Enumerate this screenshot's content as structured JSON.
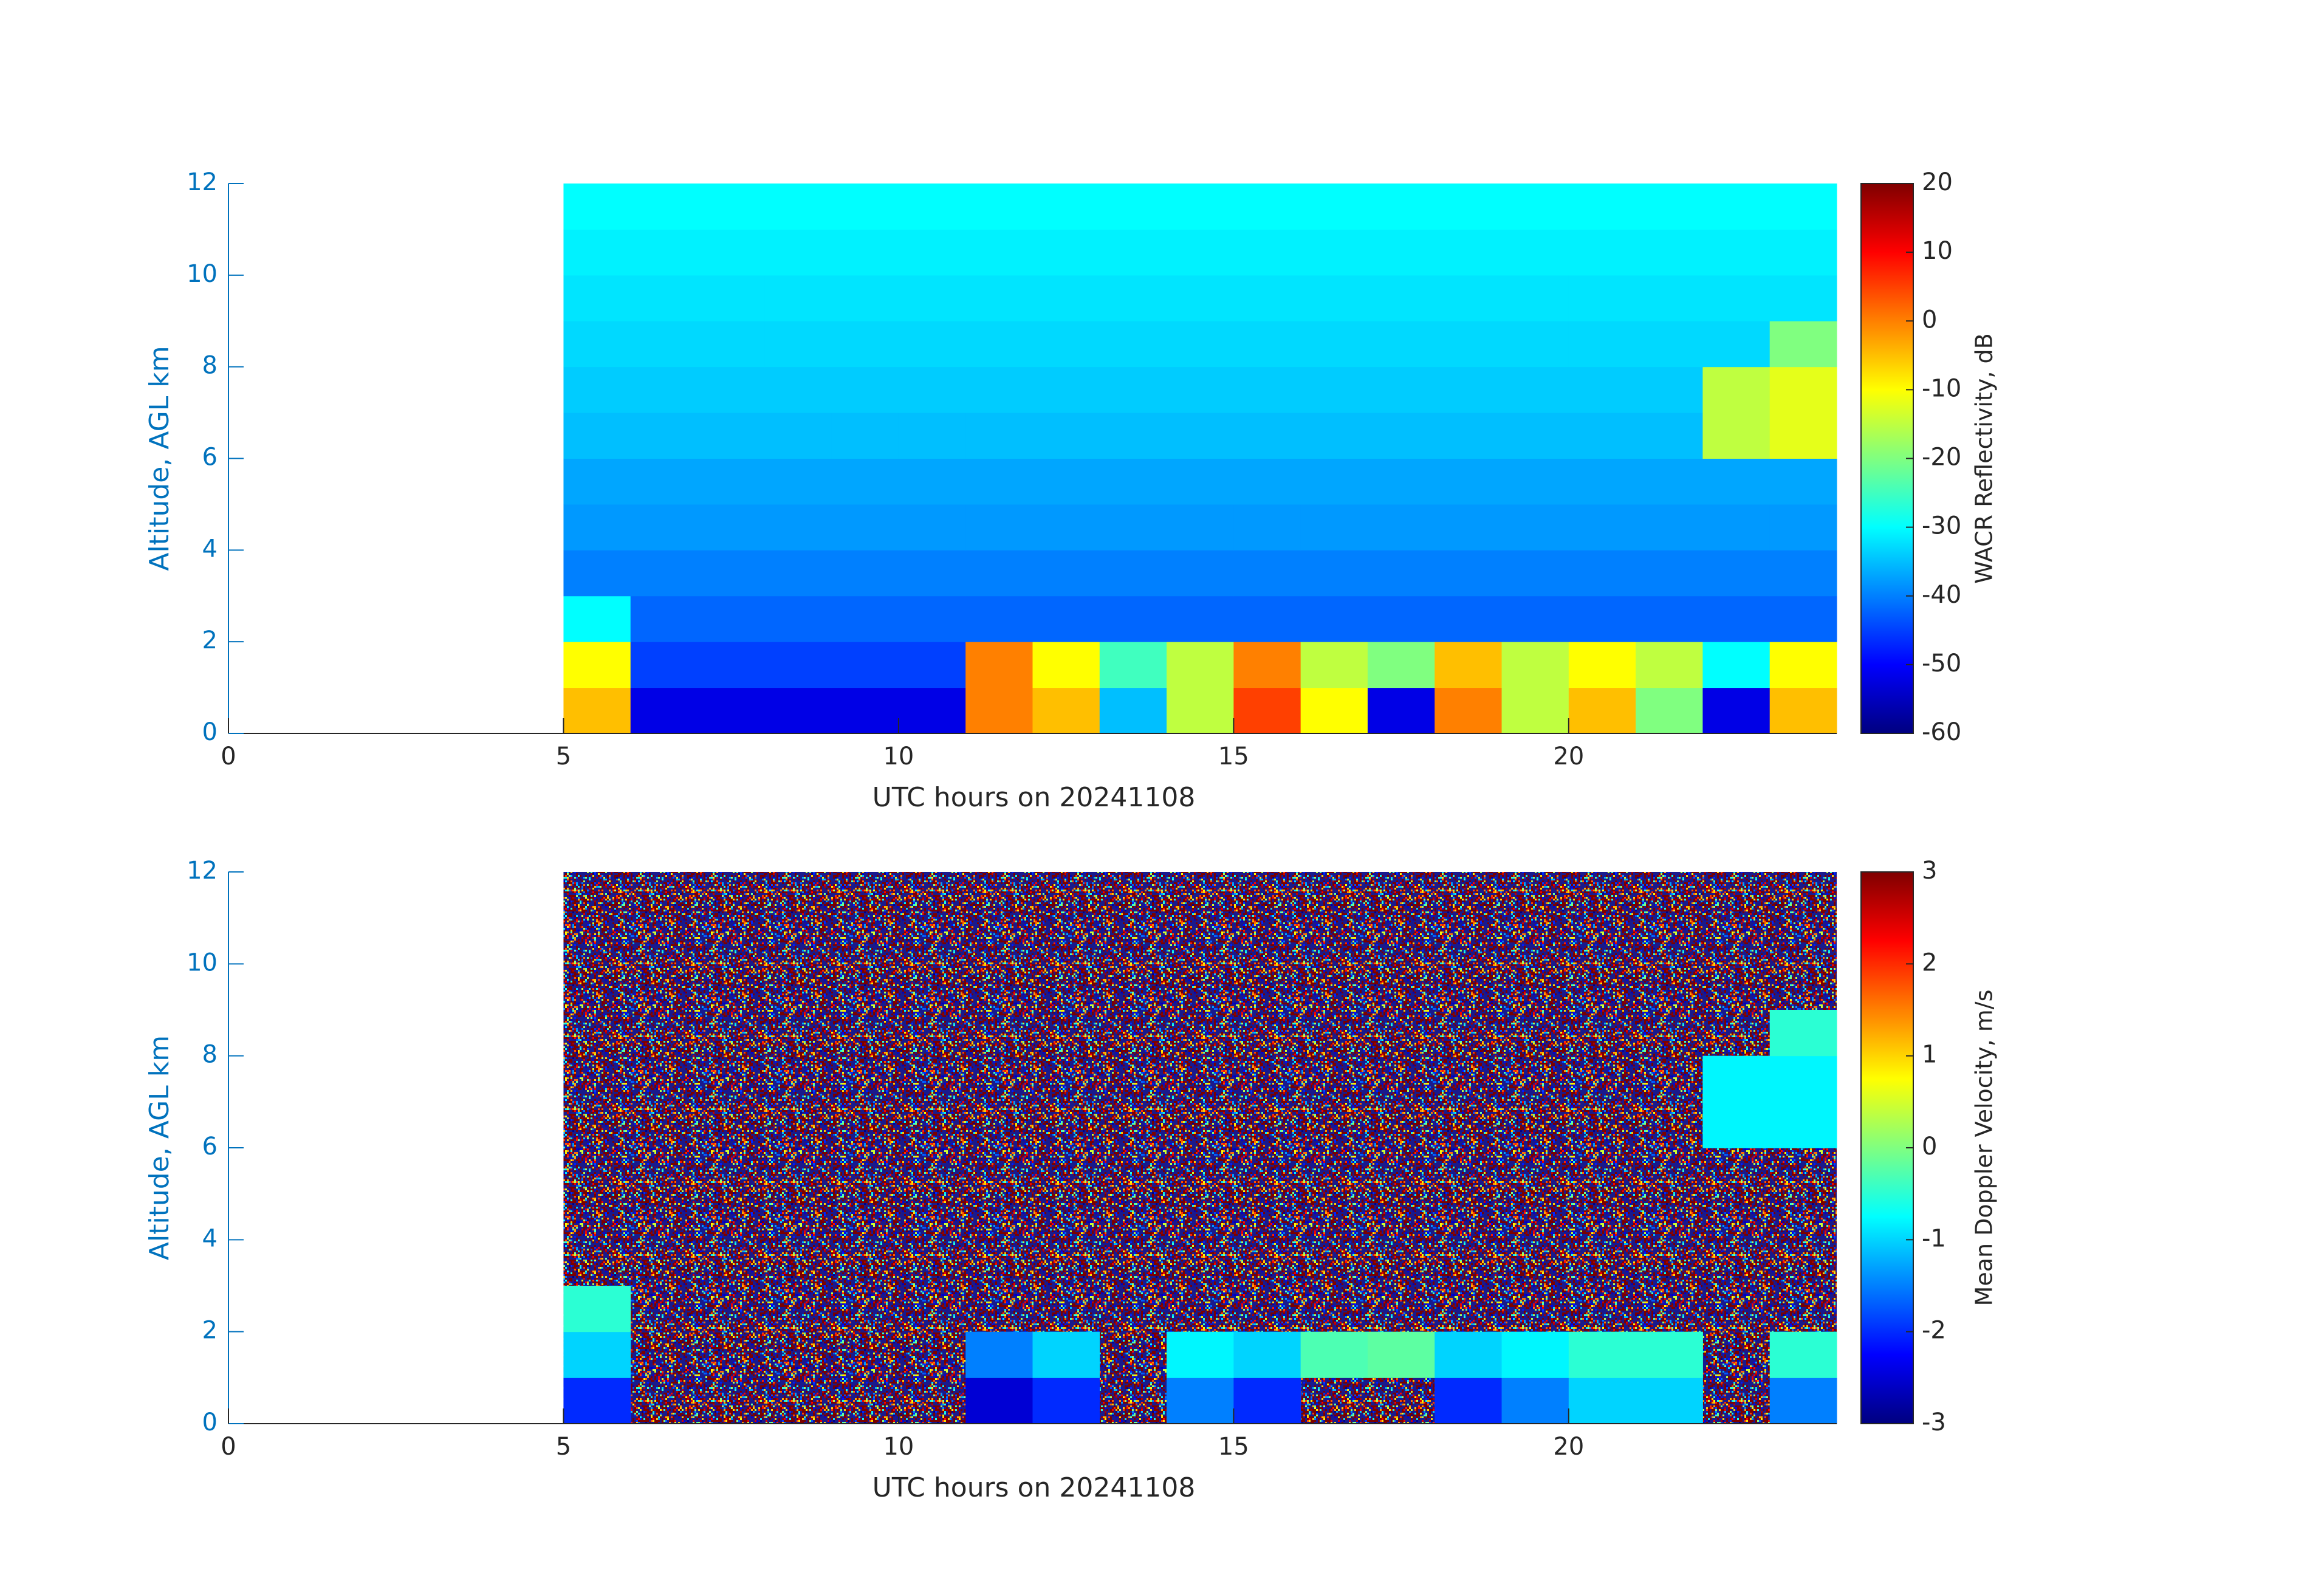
{
  "chart_data": [
    {
      "type": "heatmap",
      "colormap": "jet",
      "x_label": "UTC hours on 20241108",
      "y_label": "Altitude, AGL km",
      "colorbar_label": "WACR Reflectivity, dB",
      "xlim": [
        0,
        24
      ],
      "xticks": [
        0,
        5,
        10,
        15,
        20
      ],
      "ylim": [
        0,
        12
      ],
      "yticks": [
        0,
        2,
        4,
        6,
        8,
        10,
        12
      ],
      "clim": [
        -60,
        20
      ],
      "cticks": [
        -60,
        -50,
        -40,
        -30,
        -20,
        -10,
        0,
        10,
        20
      ],
      "x": [
        5,
        6,
        7,
        8,
        9,
        10,
        11,
        12,
        13,
        14,
        15,
        16,
        17,
        18,
        19,
        20,
        21,
        22,
        23,
        24
      ],
      "y": [
        0,
        1,
        2,
        3,
        4,
        5,
        6,
        7,
        8,
        9,
        10,
        11,
        12
      ],
      "values": [
        [
          -5,
          -52,
          -52,
          -52,
          -52,
          -52,
          0,
          -5,
          -35,
          -15,
          5,
          -10,
          -52,
          0,
          -15,
          -5,
          -20,
          -52,
          -5
        ],
        [
          -10,
          -45,
          -45,
          -45,
          -45,
          -45,
          0,
          -10,
          -25,
          -15,
          0,
          -15,
          -20,
          -5,
          -15,
          -10,
          -15,
          -30,
          -10
        ],
        [
          -30,
          -42,
          -42,
          -42,
          -42,
          -42,
          -42,
          -42,
          -42,
          -42,
          -42,
          -42,
          -42,
          -42,
          -42,
          -42,
          -42,
          -42,
          -42
        ],
        [
          -40,
          -40,
          -40,
          -40,
          -40,
          -40,
          -40,
          -40,
          -40,
          -40,
          -40,
          -40,
          -40,
          -40,
          -40,
          -40,
          -40,
          -40,
          -40
        ],
        [
          -38,
          -38,
          -38,
          -38,
          -38,
          -38,
          -38,
          -38,
          -38,
          -38,
          -38,
          -38,
          -38,
          -38,
          -38,
          -38,
          -38,
          -38,
          -38
        ],
        [
          -37,
          -37,
          -37,
          -37,
          -37,
          -37,
          -37,
          -37,
          -37,
          -37,
          -37,
          -37,
          -37,
          -37,
          -37,
          -37,
          -37,
          -37,
          -37
        ],
        [
          -35,
          -35,
          -35,
          -35,
          -35,
          -35,
          -35,
          -35,
          -35,
          -35,
          -35,
          -35,
          -35,
          -35,
          -35,
          -35,
          -35,
          -15,
          -12
        ],
        [
          -34,
          -34,
          -34,
          -34,
          -34,
          -34,
          -34,
          -34,
          -34,
          -34,
          -34,
          -34,
          -34,
          -34,
          -34,
          -34,
          -34,
          -15,
          -12
        ],
        [
          -33,
          -33,
          -33,
          -33,
          -33,
          -33,
          -33,
          -33,
          -33,
          -33,
          -33,
          -33,
          -33,
          -33,
          -33,
          -33,
          -33,
          -33,
          -20
        ],
        [
          -32,
          -32,
          -32,
          -32,
          -32,
          -32,
          -32,
          -32,
          -32,
          -32,
          -32,
          -32,
          -32,
          -32,
          -32,
          -32,
          -32,
          -32,
          -32
        ],
        [
          -31,
          -31,
          -31,
          -31,
          -31,
          -31,
          -31,
          -31,
          -31,
          -31,
          -31,
          -31,
          -31,
          -31,
          -31,
          -31,
          -31,
          -31,
          -31
        ],
        [
          -30,
          -30,
          -30,
          -30,
          -30,
          -30,
          -30,
          -30,
          -30,
          -30,
          -30,
          -30,
          -30,
          -30,
          -30,
          -30,
          -30,
          -30,
          -30
        ]
      ]
    },
    {
      "type": "heatmap",
      "colormap": "jet",
      "x_label": "UTC hours on 20241108",
      "y_label": "Altitude, AGL km",
      "colorbar_label": "Mean Doppler Velocity, m/s",
      "xlim": [
        0,
        24
      ],
      "xticks": [
        0,
        5,
        10,
        15,
        20
      ],
      "ylim": [
        0,
        12
      ],
      "yticks": [
        0,
        2,
        4,
        6,
        8,
        10,
        12
      ],
      "clim": [
        -3,
        3
      ],
      "cticks": [
        -3,
        -2,
        -1,
        0,
        1,
        2,
        3
      ],
      "x": [
        5,
        6,
        7,
        8,
        9,
        10,
        11,
        12,
        13,
        14,
        15,
        16,
        17,
        18,
        19,
        20,
        21,
        22,
        23,
        24
      ],
      "y": [
        0,
        1,
        2,
        3,
        4,
        5,
        6,
        7,
        8,
        9,
        10,
        11,
        12
      ],
      "values": [
        [
          -2,
          null,
          null,
          null,
          null,
          null,
          -2.5,
          -2,
          null,
          -1.5,
          -2,
          null,
          null,
          -2,
          -1.5,
          -1,
          -1,
          null,
          -1.5
        ],
        [
          -1,
          null,
          null,
          null,
          null,
          null,
          -1.5,
          -1,
          null,
          -0.8,
          -1,
          -0.3,
          -0.2,
          -1,
          -0.8,
          -0.5,
          -0.5,
          null,
          -0.5
        ],
        [
          -0.5,
          null,
          null,
          null,
          null,
          null,
          null,
          null,
          null,
          null,
          null,
          null,
          null,
          null,
          null,
          null,
          null,
          null,
          null
        ],
        [
          null,
          null,
          null,
          null,
          null,
          null,
          null,
          null,
          null,
          null,
          null,
          null,
          null,
          null,
          null,
          null,
          null,
          null,
          null
        ],
        [
          null,
          null,
          null,
          null,
          null,
          null,
          null,
          null,
          null,
          null,
          null,
          null,
          null,
          null,
          null,
          null,
          null,
          null,
          null
        ],
        [
          null,
          null,
          null,
          null,
          null,
          null,
          null,
          null,
          null,
          null,
          null,
          null,
          null,
          null,
          null,
          null,
          null,
          null,
          null
        ],
        [
          null,
          null,
          null,
          null,
          null,
          null,
          null,
          null,
          null,
          null,
          null,
          null,
          null,
          null,
          null,
          null,
          null,
          -0.8,
          -0.8
        ],
        [
          null,
          null,
          null,
          null,
          null,
          null,
          null,
          null,
          null,
          null,
          null,
          null,
          null,
          null,
          null,
          null,
          null,
          -0.8,
          -0.8
        ],
        [
          null,
          null,
          null,
          null,
          null,
          null,
          null,
          null,
          null,
          null,
          null,
          null,
          null,
          null,
          null,
          null,
          null,
          null,
          -0.5
        ],
        [
          null,
          null,
          null,
          null,
          null,
          null,
          null,
          null,
          null,
          null,
          null,
          null,
          null,
          null,
          null,
          null,
          null,
          null,
          null
        ],
        [
          null,
          null,
          null,
          null,
          null,
          null,
          null,
          null,
          null,
          null,
          null,
          null,
          null,
          null,
          null,
          null,
          null,
          null,
          null
        ],
        [
          null,
          null,
          null,
          null,
          null,
          null,
          null,
          null,
          null,
          null,
          null,
          null,
          null,
          null,
          null,
          null,
          null,
          null,
          null
        ]
      ]
    }
  ]
}
